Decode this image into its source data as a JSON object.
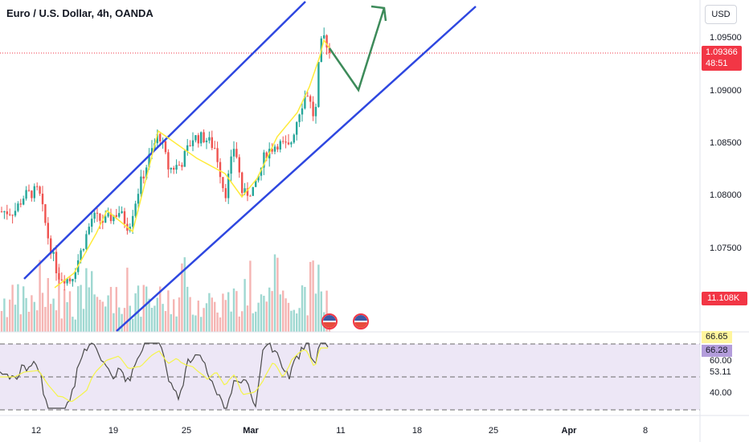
{
  "header": {
    "symbol_title": "Euro / U.S. Dollar, 4h, OANDA",
    "currency_button": "USD"
  },
  "price_axis": {
    "ticks": [
      "1.09500",
      "1.09000",
      "1.08500",
      "1.08000",
      "1.07500"
    ],
    "current_price": "1.09366",
    "countdown": "48:51",
    "volume_value": "11.108K"
  },
  "rsi": {
    "value_ma": "66.65",
    "value_rsi": "66.28",
    "ticks": [
      "60.00",
      "53.11",
      "40.00"
    ]
  },
  "time_axis": {
    "ticks": [
      {
        "label": "12",
        "bold": false
      },
      {
        "label": "19",
        "bold": false
      },
      {
        "label": "25",
        "bold": false
      },
      {
        "label": "Mar",
        "bold": true
      },
      {
        "label": "11",
        "bold": false
      },
      {
        "label": "18",
        "bold": false
      },
      {
        "label": "25",
        "bold": false
      },
      {
        "label": "Apr",
        "bold": true
      },
      {
        "label": "8",
        "bold": false
      }
    ]
  },
  "colors": {
    "up": "#26a69a",
    "down": "#ef5350",
    "channel": "#2e47e0",
    "zigzag": "#ffeb3b",
    "projection": "#3d8b5a",
    "rsi_line": "#4a4a4a",
    "rsi_ma": "#f5f54a",
    "rsi_band": "#ede7f6",
    "price_line": "#f23645"
  },
  "events": [
    {
      "name": "us-economic-event-icon"
    },
    {
      "name": "us-economic-event-icon"
    }
  ]
}
